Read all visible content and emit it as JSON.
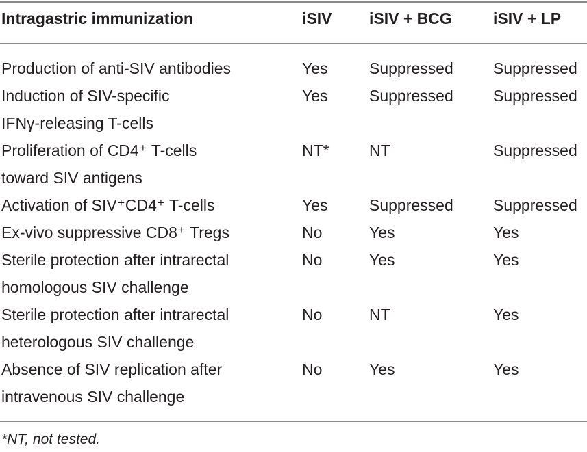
{
  "table": {
    "headers": {
      "c0": "Intragastric immunization",
      "c1": "iSIV",
      "c2": "iSIV + BCG",
      "c3": "iSIV + LP"
    },
    "rows": [
      {
        "label_lines": [
          "Production of anti-SIV antibodies"
        ],
        "c1": "Yes",
        "c2": "Suppressed",
        "c3": "Suppressed"
      },
      {
        "label_lines": [
          "Induction of SIV-specific",
          "IFNγ-releasing T-cells"
        ],
        "c1": "Yes",
        "c2": "Suppressed",
        "c3": "Suppressed"
      },
      {
        "label_lines": [
          "Proliferation of CD4⁺ T-cells",
          "toward SIV antigens"
        ],
        "c1": "NT*",
        "c2": "NT",
        "c3": "Suppressed"
      },
      {
        "label_lines": [
          "Activation of SIV⁺CD4⁺ T-cells"
        ],
        "c1": "Yes",
        "c2": "Suppressed",
        "c3": "Suppressed"
      },
      {
        "label_lines": [
          "Ex-vivo suppressive CD8⁺ Tregs"
        ],
        "c1": "No",
        "c2": "Yes",
        "c3": "Yes"
      },
      {
        "label_lines": [
          "Sterile protection after intrarectal",
          "homologous SIV challenge"
        ],
        "c1": "No",
        "c2": "Yes",
        "c3": "Yes"
      },
      {
        "label_lines": [
          "Sterile protection after intrarectal",
          "heterologous SIV challenge"
        ],
        "c1": "No",
        "c2": "NT",
        "c3": "Yes"
      },
      {
        "label_lines": [
          "Absence of SIV replication after",
          "intravenous SIV challenge"
        ],
        "c1": "No",
        "c2": "Yes",
        "c3": "Yes"
      }
    ],
    "footnote": "*NT, not tested."
  }
}
